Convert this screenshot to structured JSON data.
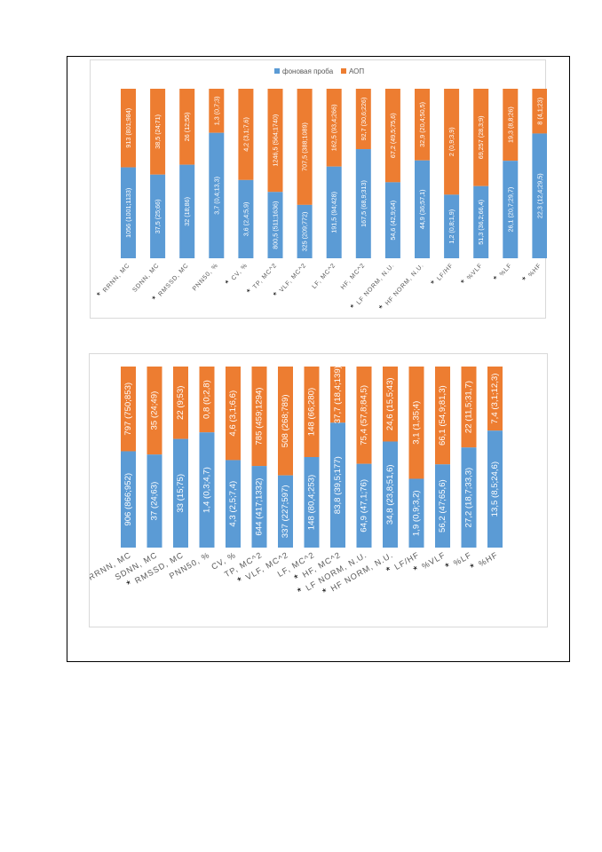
{
  "legend": {
    "series1": "фоновая проба",
    "series2": "АОП"
  },
  "colors": {
    "series1": "#5b9bd5",
    "series2": "#ed7d31",
    "star": "#000000"
  },
  "chart_data": [
    {
      "type": "bar",
      "stacked": "percent",
      "legend_position": "top",
      "categories": [
        "RRNN, MC",
        "SDNN, MC",
        "RMSSD, MC",
        "PNN50, %",
        "CV, %",
        "TP, MC^2",
        "VLF, MC^2",
        "LF, MC^2",
        "HF, MC^2",
        "LF NORM, N.U.",
        "HF NORM, N.U.",
        "LF/HF",
        "%VLF",
        "%LF",
        "%HF"
      ],
      "star_marks": [
        true,
        false,
        true,
        false,
        true,
        true,
        true,
        false,
        false,
        true,
        true,
        true,
        true,
        true,
        true
      ],
      "series": [
        {
          "name": "фоновая проба",
          "values": [
            1056,
            37.5,
            32,
            3.7,
            3.6,
            800.5,
            325,
            191.5,
            167.5,
            54.6,
            44.9,
            1.2,
            51.3,
            26.1,
            22.3
          ],
          "labels": [
            "1056 (1001;1133)",
            "37,5 (25;66)",
            "32 (18;86)",
            "3,7 (0,4;13,3)",
            "3,6 (2,4;5,9)",
            "800,5 (511;1636)",
            "325 (209;772)",
            "191,5 (94;428)",
            "167,5 (68,9;313)",
            "54,6 (42,9;64)",
            "44,9 (36;57,1)",
            "1,2 (0,8;1,9)",
            "51,3 (36,2;66,4)",
            "26,1 (20,7;29,7)",
            "22,3 (12,4;29,5)"
          ]
        },
        {
          "name": "АОП",
          "values": [
            913,
            38.5,
            26,
            1.3,
            4.2,
            1246.5,
            707.5,
            162.5,
            92.7,
            67.2,
            32.9,
            2,
            69.257,
            19.3,
            8
          ],
          "labels": [
            "913 (801;984)",
            "38,5 (24;71)",
            "26 (12;55)",
            "1,3 (0,7;3)",
            "4,2 (3,1;7,6)",
            "1246,5 (564;1740)",
            "707,5 (388;1089)",
            "162,5 (93,4;266)",
            "92,7 (30,6;226)",
            "67,2 (49,5;75,6)",
            "32,9 (20,4;50,5)",
            "2 (0,9;3,9)",
            "69,257 (28,3;9)",
            "19,3 (8,8;26)",
            "8 (4,1;23)"
          ]
        }
      ]
    },
    {
      "type": "bar",
      "stacked": "percent",
      "categories": [
        "RRNN, MC",
        "SDNN, MC",
        "RMSSD, MC",
        "PNN50, %",
        "CV, %",
        "TP, MC^2",
        "VLF, MC^2",
        "LF, MC^2",
        "HF, MC^2",
        "LF NORM, N.U.",
        "HF NORM, N.U.",
        "LF/HF",
        "%VLF",
        "%LF",
        "%HF"
      ],
      "star_marks": [
        true,
        false,
        true,
        false,
        false,
        false,
        true,
        false,
        true,
        true,
        true,
        true,
        true,
        true,
        true
      ],
      "series": [
        {
          "name": "фоновая проба",
          "values": [
            906,
            37,
            33,
            1.4,
            4.3,
            644,
            337,
            148,
            83.8,
            64.9,
            34.8,
            1.9,
            56.2,
            27.2,
            13.5
          ],
          "labels": [
            "906 (866;952)",
            "37 (24;63)",
            "33 (15;75)",
            "1,4 (0,3;4,7)",
            "4,3 (2,5;7,4)",
            "644 (417;1332)",
            "337 (227;597)",
            "148 (80,4;253)",
            "83,8 (39,5;177)",
            "64,9 (47,1;76)",
            "34,8 (23,8;51,6)",
            "1,9 (0,9;3,2)",
            "56,2 (47;65,6)",
            "27,2 (18,7;33,3)",
            "13,5 (8,5;24,6)"
          ]
        },
        {
          "name": "АОП",
          "values": [
            797,
            35,
            22,
            0.8,
            4.6,
            785,
            508,
            148,
            37.7,
            75.4,
            24.6,
            3.1,
            66.1,
            22,
            7.4
          ],
          "labels": [
            "797 (750;853)",
            "35 (24;49)",
            "22 (9;53)",
            "0,8 (0;2,8)",
            "4,6 (3,1;6,6)",
            "785 (459;1294)",
            "508 (268;789)",
            "148 (66;280)",
            "37,7 (18,4;139)",
            "75,4 (57,8;84,5)",
            "24,6 (15,5;43)",
            "3,1 (1,35;4)",
            "66,1 (54,9;81,3)",
            "22 (11,5;31,7)",
            "7,4 (3,1;12,3)"
          ]
        }
      ]
    }
  ]
}
